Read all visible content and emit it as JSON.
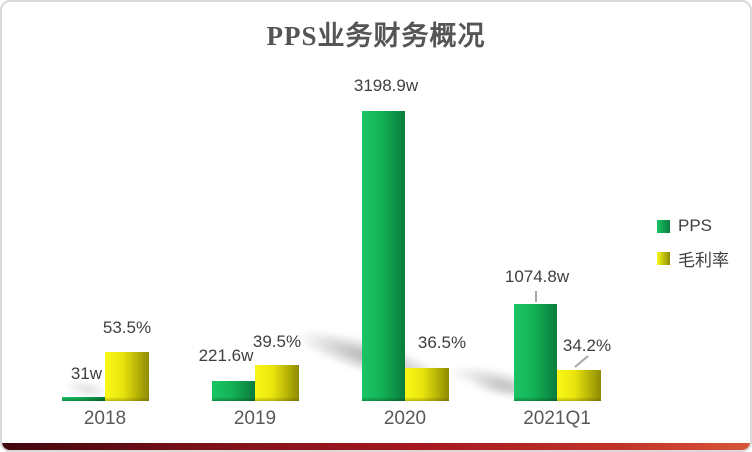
{
  "chart_data": {
    "type": "bar",
    "title": "PPS业务财务概况",
    "categories": [
      "2018",
      "2019",
      "2020",
      "2021Q1"
    ],
    "series": [
      {
        "name": "PPS",
        "unit": "w",
        "values": [
          31,
          221.6,
          3198.9,
          1074.8
        ],
        "labels": [
          "31w",
          "221.6w",
          "3198.9w",
          "1074.8w"
        ],
        "color": "#12b258"
      },
      {
        "name": "毛利率",
        "unit": "%",
        "values": [
          53.5,
          39.5,
          36.5,
          34.2
        ],
        "labels": [
          "53.5%",
          "39.5%",
          "36.5%",
          "34.2%"
        ],
        "color": "#e8e30e"
      }
    ],
    "legend_position": "right",
    "grid": false,
    "axes_visible": false,
    "ylim_pps_w": [
      0,
      3300
    ],
    "ylim_margin_pct": [
      0,
      55
    ]
  },
  "decor": {
    "bottom_accent_gradient": [
      "#3f070e",
      "#a5171f",
      "#d8553a"
    ],
    "border_color": "#d9d9d9",
    "title_color": "#555555",
    "label_color": "#3f3f3f"
  }
}
